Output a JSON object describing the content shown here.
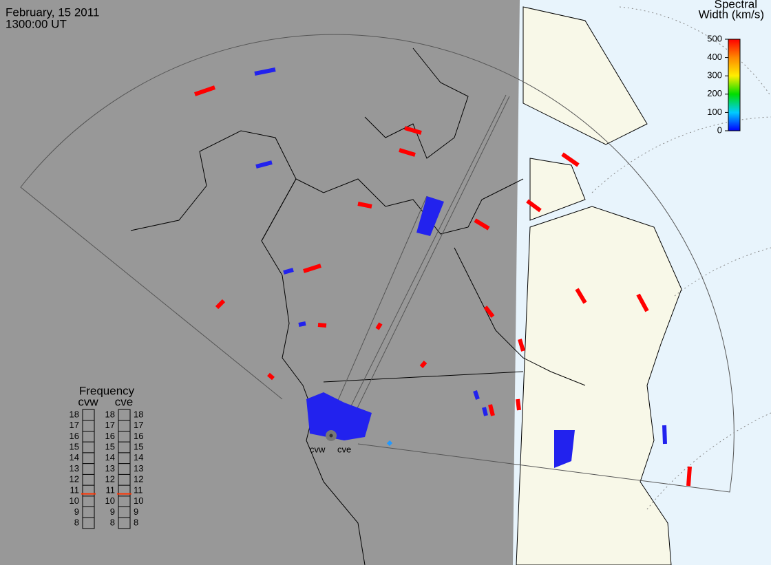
{
  "header": {
    "date": "February, 15 2011",
    "time": "1300:00 UT"
  },
  "colorbar": {
    "title": [
      "Spectral",
      "Width (km/s)"
    ],
    "lim": [
      0,
      500
    ],
    "ticks": [
      0,
      100,
      200,
      300,
      400,
      500
    ]
  },
  "frequency": {
    "title": "Frequency",
    "lim": [
      8,
      18
    ],
    "ticks": [
      8,
      9,
      10,
      11,
      12,
      13,
      14,
      15,
      16,
      17,
      18
    ],
    "radars": [
      {
        "name": "cvw",
        "value": 10.7
      },
      {
        "name": "cve",
        "value": 10.7
      }
    ]
  },
  "sites": [
    {
      "label": "cvw"
    },
    {
      "label": "cve"
    }
  ]
}
